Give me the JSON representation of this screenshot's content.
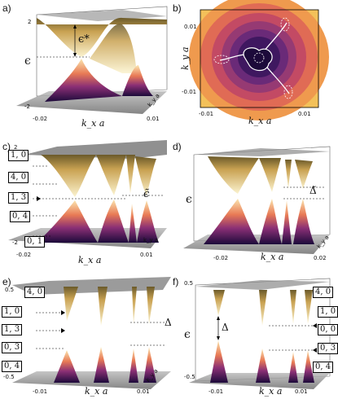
{
  "figure": {
    "panels": [
      {
        "id": "a",
        "label": "a)",
        "ticks_y": [
          "2",
          "-2"
        ],
        "ticks_x": [
          "-0.02",
          "0.01"
        ],
        "xlabel": "k_x a",
        "ylabel": "ϵ",
        "annotation": "ϵ*",
        "depth_label": "k_y a"
      },
      {
        "id": "b",
        "label": "b)",
        "ticks_y": [
          "0.01",
          "-0.01"
        ],
        "ticks_x": [
          "-0.01",
          "0.01"
        ],
        "xlabel": "k_x a",
        "ylabel": "k_y a"
      },
      {
        "id": "c",
        "label": "c)",
        "ticks_y": [
          "2",
          "-2"
        ],
        "ticks_x": [
          "-0.02",
          "0.01"
        ],
        "xlabel": "k_x a",
        "annotation": "ϵ̃",
        "depth_label": "k_y a",
        "boxes": [
          "1, 0",
          "4, 0",
          "1, 3",
          "0, 4",
          "0, 1"
        ]
      },
      {
        "id": "d",
        "label": "d)",
        "ticks_x": [
          "-0.02",
          "0.02"
        ],
        "xlabel": "k_x a",
        "ylabel": "ϵ",
        "annotation": "Δ̃",
        "depth_label": "k_y a"
      },
      {
        "id": "e",
        "label": "e)",
        "ticks_y": [
          "0.5",
          "-0.5"
        ],
        "ticks_x": [
          "-0.01",
          "0.01"
        ],
        "xlabel": "k_x a",
        "annotation": "Δ",
        "depth_label": "k_y a",
        "boxes": [
          "4, 0",
          "1, 0",
          "1, 3",
          "0, 3",
          "0, 4"
        ]
      },
      {
        "id": "f",
        "label": "f)",
        "ticks_y": [
          "0.5",
          "-0.5"
        ],
        "ticks_x": [
          "-0.01",
          "0.01"
        ],
        "xlabel": "k_x a",
        "ylabel": "ϵ",
        "annotation": "Δ",
        "boxes": [
          "4, 0",
          "1, 0",
          "0, 0",
          "0, 3",
          "0, 4"
        ]
      }
    ]
  },
  "colors": {
    "upper": "#f0c060",
    "lower": "#3b1060",
    "mid": "#d05070",
    "plane": "#999999"
  }
}
